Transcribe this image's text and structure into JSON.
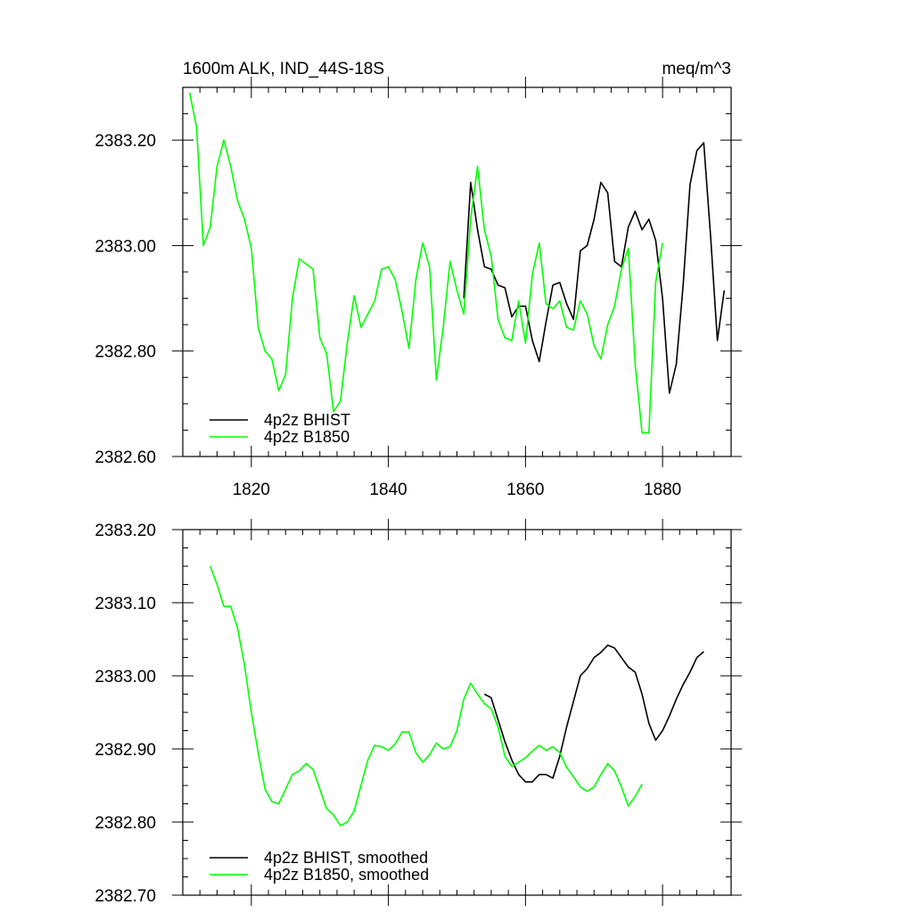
{
  "chart_data": [
    {
      "type": "line",
      "title": "1600m ALK, IND_44S-18S",
      "units": "meq/m^3",
      "xlim": [
        1810,
        1890
      ],
      "ylim": [
        2382.6,
        2383.3
      ],
      "x_ticks": [
        1820,
        1840,
        1860,
        1880
      ],
      "x_tick_labels": [
        "1820",
        "1840",
        "1860",
        "1880"
      ],
      "y_ticks": [
        2382.6,
        2382.8,
        2383.0,
        2383.2
      ],
      "y_tick_labels": [
        "2382.60",
        "2382.80",
        "2383.00",
        "2383.20"
      ],
      "legend": [
        "4p2z BHIST",
        "4p2z B1850"
      ],
      "series": [
        {
          "name": "4p2z BHIST",
          "color": "#000000",
          "x": [
            1851,
            1852,
            1853,
            1854,
            1855,
            1856,
            1857,
            1858,
            1859,
            1860,
            1861,
            1862,
            1863,
            1864,
            1865,
            1866,
            1867,
            1868,
            1869,
            1870,
            1871,
            1872,
            1873,
            1874,
            1875,
            1876,
            1877,
            1878,
            1879,
            1880,
            1881,
            1882,
            1883,
            1884,
            1885,
            1886,
            1887,
            1888,
            1889
          ],
          "values": [
            2382.9,
            2383.12,
            2383.03,
            2382.96,
            2382.955,
            2382.925,
            2382.92,
            2382.865,
            2382.885,
            2382.885,
            2382.82,
            2382.78,
            2382.855,
            2382.925,
            2382.93,
            2382.89,
            2382.86,
            2382.99,
            2383.0,
            2383.05,
            2383.12,
            2383.1,
            2382.97,
            2382.96,
            2383.035,
            2383.065,
            2383.03,
            2383.05,
            2383.01,
            2382.9,
            2382.72,
            2382.775,
            2382.925,
            2383.115,
            2383.18,
            2383.195,
            2383.02,
            2382.82,
            2382.915
          ]
        },
        {
          "name": "4p2z B1850",
          "color": "#00ff00",
          "x": [
            1811,
            1812,
            1813,
            1814,
            1815,
            1816,
            1817,
            1818,
            1819,
            1820,
            1821,
            1822,
            1823,
            1824,
            1825,
            1826,
            1827,
            1828,
            1829,
            1830,
            1831,
            1832,
            1833,
            1834,
            1835,
            1836,
            1837,
            1838,
            1839,
            1840,
            1841,
            1842,
            1843,
            1844,
            1845,
            1846,
            1847,
            1848,
            1849,
            1850,
            1851,
            1852,
            1853,
            1854,
            1855,
            1856,
            1857,
            1858,
            1859,
            1860,
            1861,
            1862,
            1863,
            1864,
            1865,
            1866,
            1867,
            1868,
            1869,
            1870,
            1871,
            1872,
            1873,
            1874,
            1875,
            1876,
            1877,
            1878,
            1879,
            1880
          ],
          "values": [
            2383.29,
            2383.225,
            2383.0,
            2383.035,
            2383.15,
            2383.2,
            2383.15,
            2383.085,
            2383.05,
            2382.995,
            2382.845,
            2382.8,
            2382.785,
            2382.725,
            2382.755,
            2382.9,
            2382.975,
            2382.965,
            2382.955,
            2382.825,
            2382.795,
            2382.685,
            2382.705,
            2382.815,
            2382.905,
            2382.845,
            2382.87,
            2382.895,
            2382.955,
            2382.96,
            2382.935,
            2382.875,
            2382.805,
            2382.935,
            2383.005,
            2382.96,
            2382.745,
            2382.845,
            2382.97,
            2382.915,
            2382.87,
            2383.05,
            2383.15,
            2383.03,
            2382.98,
            2382.86,
            2382.825,
            2382.82,
            2382.895,
            2382.815,
            2382.945,
            2383.005,
            2382.89,
            2382.88,
            2382.895,
            2382.845,
            2382.84,
            2382.895,
            2382.87,
            2382.81,
            2382.785,
            2382.85,
            2382.885,
            2382.955,
            2382.995,
            2382.775,
            2382.645,
            2382.645,
            2382.93,
            2383.005
          ]
        }
      ]
    },
    {
      "type": "line",
      "title": "",
      "xlim": [
        1810,
        1890
      ],
      "ylim": [
        2382.7,
        2383.2
      ],
      "x_ticks": [
        1820,
        1840,
        1860,
        1880
      ],
      "y_ticks": [
        2382.7,
        2382.8,
        2382.9,
        2383.0,
        2383.1,
        2383.2
      ],
      "y_tick_labels": [
        "2382.70",
        "2382.80",
        "2382.90",
        "2383.00",
        "2383.10",
        "2383.20"
      ],
      "legend": [
        "4p2z BHIST, smoothed",
        "4p2z B1850, smoothed"
      ],
      "series": [
        {
          "name": "4p2z BHIST, smoothed",
          "color": "#000000",
          "x": [
            1854,
            1855,
            1856,
            1857,
            1858,
            1859,
            1860,
            1861,
            1862,
            1863,
            1864,
            1865,
            1866,
            1867,
            1868,
            1869,
            1870,
            1871,
            1872,
            1873,
            1874,
            1875,
            1876,
            1877,
            1878,
            1879,
            1880,
            1881,
            1882,
            1883,
            1884,
            1885,
            1886
          ],
          "values": [
            2382.975,
            2382.97,
            2382.94,
            2382.91,
            2382.885,
            2382.865,
            2382.855,
            2382.855,
            2382.865,
            2382.865,
            2382.86,
            2382.89,
            2382.93,
            2382.965,
            2383.0,
            2383.01,
            2383.025,
            2383.032,
            2383.042,
            2383.038,
            2383.025,
            2383.012,
            2383.005,
            2382.975,
            2382.935,
            2382.912,
            2382.925,
            2382.945,
            2382.968,
            2382.988,
            2383.005,
            2383.025,
            2383.033
          ]
        },
        {
          "name": "4p2z B1850, smoothed",
          "color": "#00ff00",
          "x": [
            1814,
            1815,
            1816,
            1817,
            1818,
            1819,
            1820,
            1821,
            1822,
            1823,
            1824,
            1825,
            1826,
            1827,
            1828,
            1829,
            1830,
            1831,
            1832,
            1833,
            1834,
            1835,
            1836,
            1837,
            1838,
            1839,
            1840,
            1841,
            1842,
            1843,
            1844,
            1845,
            1846,
            1847,
            1848,
            1849,
            1850,
            1851,
            1852,
            1853,
            1854,
            1855,
            1856,
            1857,
            1858,
            1859,
            1860,
            1861,
            1862,
            1863,
            1864,
            1865,
            1866,
            1867,
            1868,
            1869,
            1870,
            1871,
            1872,
            1873,
            1874,
            1875,
            1876,
            1877
          ],
          "values": [
            2383.15,
            2383.125,
            2383.095,
            2383.095,
            2383.065,
            2383.015,
            2382.95,
            2382.895,
            2382.845,
            2382.828,
            2382.825,
            2382.845,
            2382.865,
            2382.87,
            2382.88,
            2382.872,
            2382.845,
            2382.818,
            2382.81,
            2382.795,
            2382.8,
            2382.815,
            2382.85,
            2382.885,
            2382.905,
            2382.903,
            2382.898,
            2382.907,
            2382.923,
            2382.923,
            2382.895,
            2382.882,
            2382.892,
            2382.908,
            2382.9,
            2382.903,
            2382.925,
            2382.968,
            2382.99,
            2382.975,
            2382.962,
            2382.955,
            2382.93,
            2382.89,
            2382.876,
            2382.882,
            2382.888,
            2382.897,
            2382.905,
            2382.898,
            2382.903,
            2382.895,
            2382.875,
            2382.862,
            2382.848,
            2382.842,
            2382.848,
            2382.865,
            2382.88,
            2382.87,
            2382.848,
            2382.822,
            2382.835,
            2382.852
          ]
        }
      ]
    }
  ]
}
